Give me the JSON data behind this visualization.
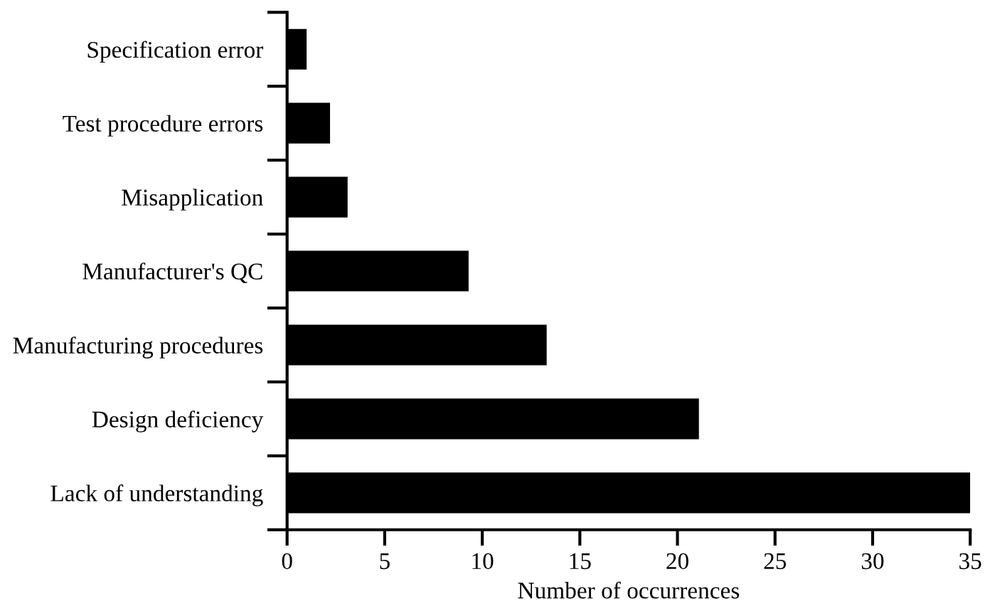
{
  "chart_data": {
    "type": "bar",
    "orientation": "horizontal",
    "xlabel": "Number of occurrences",
    "categories": [
      "Specification error",
      "Test procedure errors",
      "Misapplication",
      "Manufacturer's QC",
      "Manufacturing procedures",
      "Design deficiency",
      "Lack of understanding"
    ],
    "values": [
      1,
      2.2,
      3.1,
      9.3,
      13.3,
      21.1,
      35
    ],
    "color": "#000000",
    "xlim": [
      0,
      35
    ],
    "xticks": [
      0,
      5,
      10,
      15,
      20,
      25,
      30,
      35
    ],
    "grid": false
  }
}
